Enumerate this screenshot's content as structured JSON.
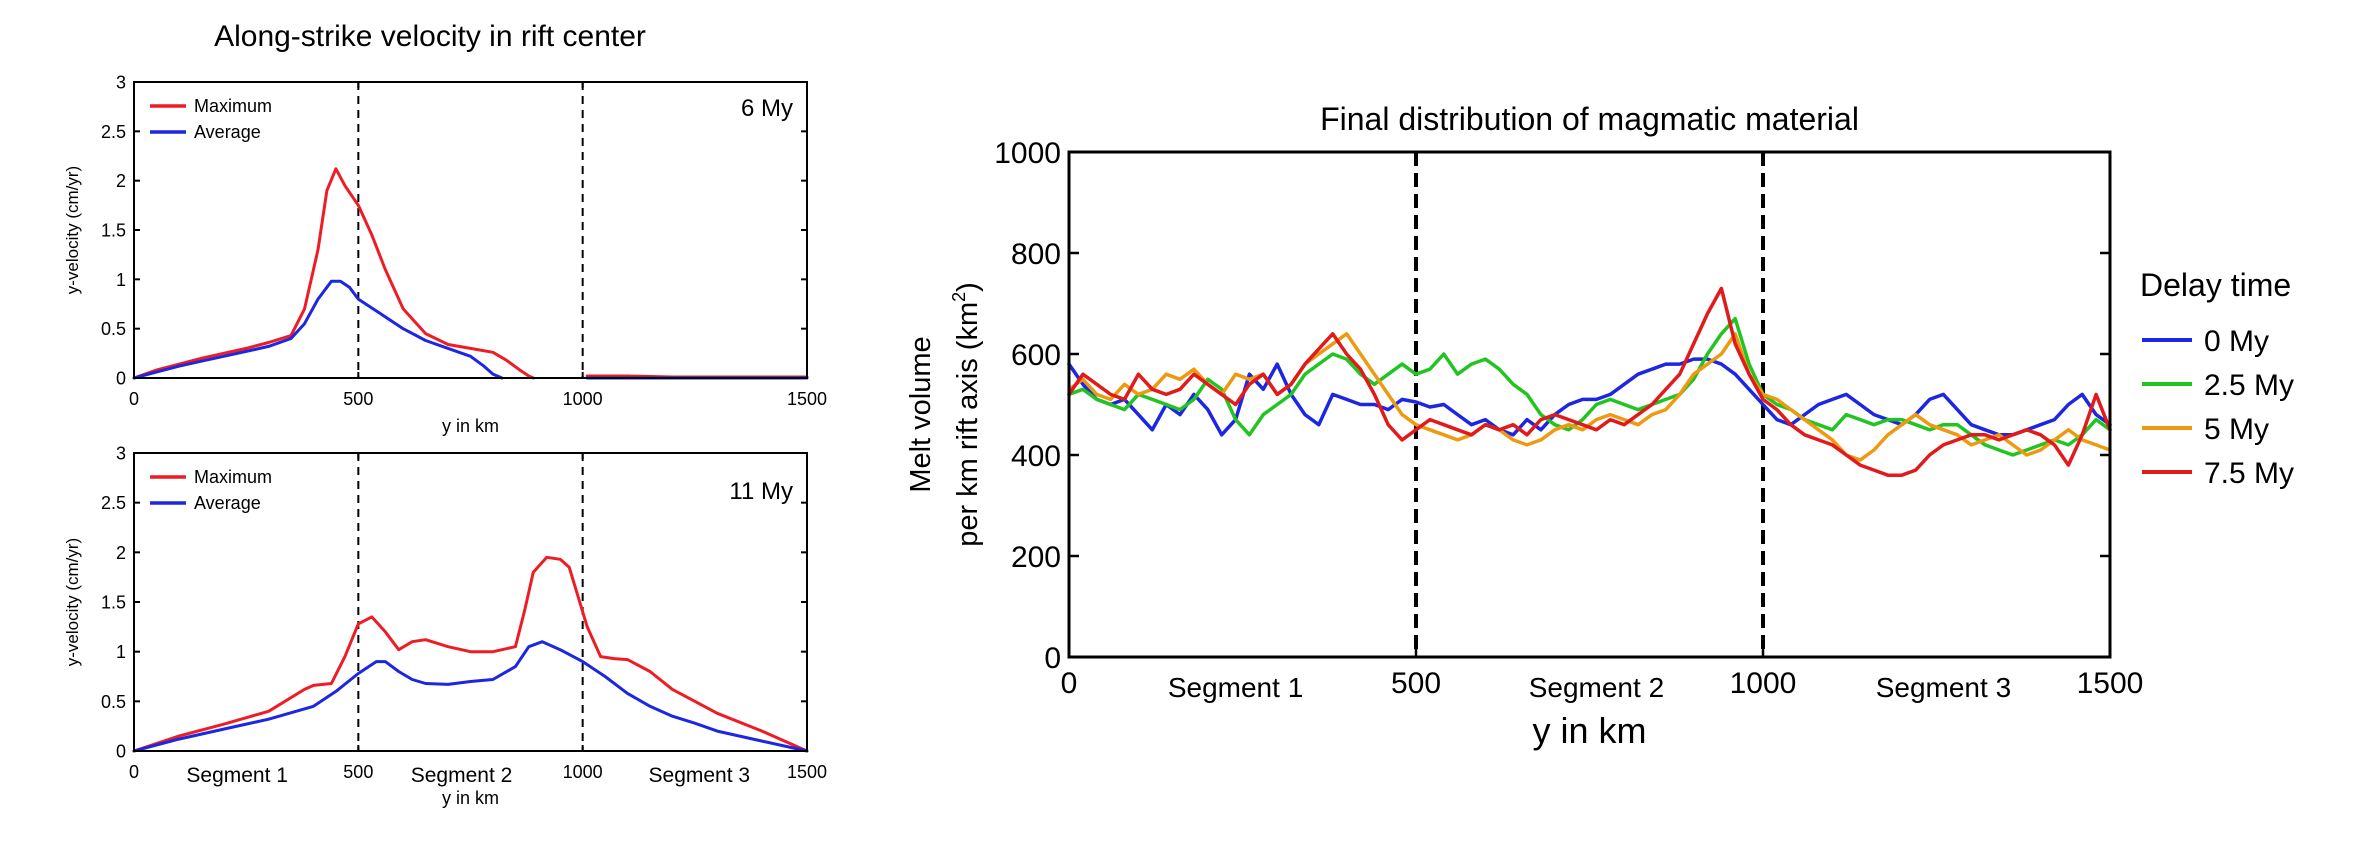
{
  "figure": {
    "main_title": "Along-strike velocity in rift center"
  },
  "chart_data": [
    {
      "type": "line",
      "title": "",
      "annotation": "6 My",
      "xlabel": "y in km",
      "ylabel": "y-velocity (cm/yr)",
      "xlim": [
        0,
        1500
      ],
      "ylim": [
        0,
        3
      ],
      "xticks": [
        0,
        500,
        1000,
        1500
      ],
      "yticks": [
        0,
        0.5,
        1,
        1.5,
        2,
        2.5,
        3
      ],
      "xtick_labels": [
        "0",
        "500",
        "1000",
        "1500"
      ],
      "ytick_labels": [
        "0",
        "0.5",
        "1",
        "1.5",
        "2",
        "2.5",
        "3"
      ],
      "segment_labels": [],
      "dashed_lines_x": [
        500,
        1000
      ],
      "legend_position": "top-left",
      "grid": false,
      "series": [
        {
          "name": "Maximum",
          "color": "#ee1c24",
          "x": [
            0,
            50,
            100,
            150,
            200,
            250,
            300,
            350,
            380,
            410,
            430,
            450,
            470,
            500,
            530,
            560,
            600,
            650,
            700,
            750,
            800,
            830,
            860,
            880,
            890
          ],
          "y": [
            0.0,
            0.08,
            0.14,
            0.2,
            0.25,
            0.3,
            0.36,
            0.43,
            0.7,
            1.3,
            1.9,
            2.12,
            1.95,
            1.75,
            1.45,
            1.1,
            0.7,
            0.45,
            0.34,
            0.3,
            0.26,
            0.18,
            0.08,
            0.02,
            0.0
          ]
        },
        {
          "name": "Average",
          "color": "#1d26e0",
          "x": [
            0,
            50,
            100,
            150,
            200,
            250,
            300,
            350,
            380,
            410,
            440,
            460,
            480,
            500,
            550,
            600,
            650,
            700,
            750,
            780,
            800,
            820
          ],
          "y": [
            0.0,
            0.06,
            0.12,
            0.17,
            0.22,
            0.27,
            0.32,
            0.4,
            0.55,
            0.8,
            0.98,
            0.98,
            0.92,
            0.8,
            0.65,
            0.5,
            0.38,
            0.3,
            0.22,
            0.12,
            0.04,
            0.0
          ]
        },
        {
          "name": "",
          "color": "#ee1c24",
          "x": [
            1010,
            1100,
            1200,
            1300,
            1400,
            1500
          ],
          "y": [
            0.02,
            0.02,
            0.01,
            0.01,
            0.01,
            0.01
          ]
        },
        {
          "name": "",
          "color": "#1d26e0",
          "x": [
            1010,
            1100,
            1200,
            1300,
            1400,
            1500
          ],
          "y": [
            0.0,
            0.0,
            0.0,
            0.0,
            0.0,
            0.0
          ]
        }
      ]
    },
    {
      "type": "line",
      "title": "",
      "annotation": "11 My",
      "xlabel": "y in km",
      "ylabel": "y-velocity (cm/yr)",
      "xlim": [
        0,
        1500
      ],
      "ylim": [
        0,
        3
      ],
      "xticks": [
        0,
        500,
        1000,
        1500
      ],
      "yticks": [
        0,
        0.5,
        1,
        1.5,
        2,
        2.5,
        3
      ],
      "xtick_labels": [
        "0",
        "500",
        "1000",
        "1500"
      ],
      "ytick_labels": [
        "0",
        "0.5",
        "1",
        "1.5",
        "2",
        "2.5",
        "3"
      ],
      "segment_labels": [
        {
          "text": "Segment 1",
          "x": 230
        },
        {
          "text": "Segment 2",
          "x": 730
        },
        {
          "text": "Segment 3",
          "x": 1260
        }
      ],
      "dashed_lines_x": [
        500,
        1000
      ],
      "legend_position": "top-left",
      "grid": false,
      "series": [
        {
          "name": "Maximum",
          "color": "#ee1c24",
          "x": [
            0,
            100,
            200,
            300,
            380,
            400,
            440,
            470,
            500,
            530,
            560,
            590,
            620,
            650,
            700,
            750,
            800,
            850,
            870,
            890,
            920,
            950,
            970,
            990,
            1010,
            1040,
            1070,
            1100,
            1150,
            1200,
            1250,
            1300,
            1400,
            1500
          ],
          "y": [
            0.0,
            0.15,
            0.27,
            0.4,
            0.62,
            0.66,
            0.68,
            0.95,
            1.28,
            1.35,
            1.2,
            1.02,
            1.1,
            1.12,
            1.05,
            1.0,
            1.0,
            1.05,
            1.4,
            1.8,
            1.95,
            1.93,
            1.85,
            1.55,
            1.25,
            0.95,
            0.93,
            0.92,
            0.8,
            0.62,
            0.5,
            0.38,
            0.2,
            0.0
          ]
        },
        {
          "name": "Average",
          "color": "#1d26e0",
          "x": [
            0,
            100,
            200,
            300,
            400,
            450,
            500,
            540,
            560,
            590,
            620,
            650,
            700,
            750,
            800,
            850,
            880,
            910,
            950,
            1000,
            1050,
            1100,
            1150,
            1200,
            1250,
            1300,
            1400,
            1500
          ],
          "y": [
            0.0,
            0.12,
            0.22,
            0.32,
            0.45,
            0.6,
            0.78,
            0.9,
            0.9,
            0.8,
            0.72,
            0.68,
            0.67,
            0.7,
            0.72,
            0.85,
            1.05,
            1.1,
            1.02,
            0.9,
            0.75,
            0.58,
            0.45,
            0.35,
            0.28,
            0.2,
            0.1,
            0.0
          ]
        }
      ]
    },
    {
      "type": "line",
      "title": "Final distribution of magmatic material",
      "annotation": "",
      "xlabel": "y in km",
      "ylabel_line1": "Melt volume",
      "ylabel_line2": "per km rift axis (km",
      "ylabel_sup": "2",
      "ylabel_end": ")",
      "xlim": [
        0,
        1500
      ],
      "ylim": [
        0,
        1000
      ],
      "xticks": [
        0,
        500,
        1000,
        1500
      ],
      "yticks": [
        0,
        200,
        400,
        600,
        800,
        1000
      ],
      "xtick_labels": [
        "0",
        "500",
        "1000",
        "1500"
      ],
      "ytick_labels": [
        "0",
        "200",
        "400",
        "600",
        "800",
        "1000"
      ],
      "segment_labels": [
        {
          "text": "Segment 1",
          "x": 240
        },
        {
          "text": "Segment 2",
          "x": 760
        },
        {
          "text": "Segment 3",
          "x": 1260
        }
      ],
      "dashed_lines_x": [
        500,
        1000
      ],
      "legend_title": "Delay time",
      "legend_position": "right",
      "grid": false,
      "series": [
        {
          "name": "0 My",
          "color": "#1d26e0",
          "x": [
            0,
            20,
            40,
            60,
            80,
            100,
            120,
            140,
            160,
            180,
            200,
            220,
            240,
            260,
            280,
            300,
            320,
            340,
            360,
            380,
            400,
            420,
            440,
            460,
            480,
            500,
            520,
            540,
            560,
            580,
            600,
            620,
            640,
            660,
            680,
            700,
            720,
            740,
            760,
            780,
            800,
            820,
            840,
            860,
            880,
            900,
            920,
            940,
            960,
            980,
            1000,
            1020,
            1040,
            1060,
            1080,
            1100,
            1120,
            1140,
            1160,
            1180,
            1200,
            1220,
            1240,
            1260,
            1280,
            1300,
            1320,
            1340,
            1360,
            1380,
            1400,
            1420,
            1440,
            1460,
            1480,
            1500
          ],
          "y": [
            580,
            540,
            510,
            500,
            510,
            480,
            450,
            500,
            480,
            520,
            490,
            440,
            470,
            560,
            530,
            580,
            520,
            480,
            460,
            520,
            510,
            500,
            500,
            490,
            510,
            505,
            495,
            500,
            480,
            460,
            470,
            450,
            440,
            470,
            450,
            480,
            500,
            510,
            510,
            520,
            540,
            560,
            570,
            580,
            580,
            590,
            590,
            580,
            560,
            530,
            500,
            470,
            460,
            480,
            500,
            510,
            520,
            500,
            480,
            470,
            460,
            480,
            510,
            520,
            490,
            460,
            450,
            440,
            440,
            450,
            460,
            470,
            500,
            520,
            480,
            460
          ]
        },
        {
          "name": "2.5 My",
          "color": "#22c422",
          "x": [
            0,
            20,
            40,
            60,
            80,
            100,
            120,
            140,
            160,
            180,
            200,
            220,
            240,
            260,
            280,
            300,
            320,
            340,
            360,
            380,
            400,
            420,
            440,
            460,
            480,
            500,
            520,
            540,
            560,
            580,
            600,
            620,
            640,
            660,
            680,
            700,
            720,
            740,
            760,
            780,
            800,
            820,
            840,
            860,
            880,
            900,
            920,
            940,
            960,
            980,
            1000,
            1020,
            1040,
            1060,
            1080,
            1100,
            1120,
            1140,
            1160,
            1180,
            1200,
            1220,
            1240,
            1260,
            1280,
            1300,
            1320,
            1340,
            1360,
            1380,
            1400,
            1420,
            1440,
            1460,
            1480,
            1500
          ],
          "y": [
            520,
            530,
            510,
            500,
            490,
            520,
            510,
            500,
            490,
            510,
            550,
            530,
            470,
            440,
            480,
            500,
            520,
            560,
            580,
            600,
            590,
            560,
            540,
            560,
            580,
            560,
            570,
            600,
            560,
            580,
            590,
            570,
            540,
            520,
            480,
            460,
            450,
            470,
            500,
            510,
            500,
            490,
            500,
            510,
            520,
            550,
            600,
            640,
            670,
            580,
            520,
            500,
            490,
            470,
            460,
            450,
            480,
            470,
            460,
            470,
            470,
            460,
            450,
            460,
            460,
            440,
            420,
            410,
            400,
            410,
            420,
            430,
            420,
            440,
            470,
            450
          ]
        },
        {
          "name": "5 My",
          "color": "#ed9a10",
          "x": [
            0,
            20,
            40,
            60,
            80,
            100,
            120,
            140,
            160,
            180,
            200,
            220,
            240,
            260,
            280,
            300,
            320,
            340,
            360,
            380,
            400,
            420,
            440,
            460,
            480,
            500,
            520,
            540,
            560,
            580,
            600,
            620,
            640,
            660,
            680,
            700,
            720,
            740,
            760,
            780,
            800,
            820,
            840,
            860,
            880,
            900,
            920,
            940,
            960,
            980,
            1000,
            1020,
            1040,
            1060,
            1080,
            1100,
            1120,
            1140,
            1160,
            1180,
            1200,
            1220,
            1240,
            1260,
            1280,
            1300,
            1320,
            1340,
            1360,
            1380,
            1400,
            1420,
            1440,
            1460,
            1480,
            1500
          ],
          "y": [
            530,
            550,
            520,
            510,
            540,
            520,
            530,
            560,
            550,
            570,
            540,
            520,
            560,
            550,
            560,
            520,
            540,
            580,
            600,
            620,
            640,
            600,
            560,
            520,
            480,
            460,
            450,
            440,
            430,
            440,
            460,
            450,
            430,
            420,
            430,
            450,
            460,
            450,
            470,
            480,
            470,
            460,
            480,
            490,
            520,
            560,
            580,
            600,
            640,
            560,
            520,
            510,
            490,
            470,
            450,
            430,
            400,
            390,
            410,
            440,
            460,
            480,
            460,
            450,
            440,
            420,
            430,
            440,
            420,
            400,
            410,
            430,
            450,
            430,
            420,
            410
          ]
        },
        {
          "name": "7.5 My",
          "color": "#e11b1b",
          "x": [
            0,
            20,
            40,
            60,
            80,
            100,
            120,
            140,
            160,
            180,
            200,
            220,
            240,
            260,
            280,
            300,
            320,
            340,
            360,
            380,
            400,
            420,
            440,
            460,
            480,
            500,
            520,
            540,
            560,
            580,
            600,
            620,
            640,
            660,
            680,
            700,
            720,
            740,
            760,
            780,
            800,
            820,
            840,
            860,
            880,
            900,
            920,
            940,
            960,
            980,
            1000,
            1020,
            1040,
            1060,
            1080,
            1100,
            1120,
            1140,
            1160,
            1180,
            1200,
            1220,
            1240,
            1260,
            1280,
            1300,
            1320,
            1340,
            1360,
            1380,
            1400,
            1420,
            1440,
            1460,
            1480,
            1500
          ],
          "y": [
            520,
            560,
            540,
            520,
            510,
            560,
            530,
            520,
            530,
            560,
            540,
            520,
            500,
            540,
            560,
            520,
            540,
            580,
            610,
            640,
            600,
            570,
            520,
            460,
            430,
            450,
            470,
            460,
            450,
            440,
            460,
            450,
            460,
            440,
            470,
            480,
            470,
            460,
            450,
            470,
            460,
            480,
            500,
            530,
            560,
            620,
            680,
            730,
            620,
            560,
            510,
            490,
            460,
            440,
            430,
            420,
            400,
            380,
            370,
            360,
            360,
            370,
            400,
            420,
            430,
            440,
            440,
            430,
            440,
            450,
            440,
            420,
            380,
            440,
            520,
            450
          ]
        }
      ]
    }
  ]
}
